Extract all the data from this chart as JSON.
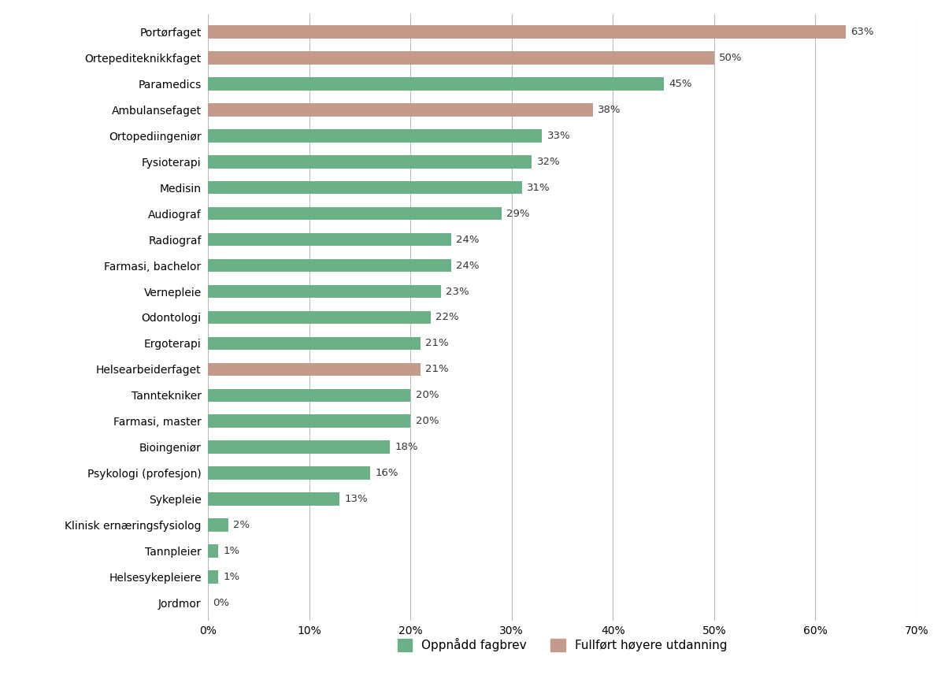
{
  "categories": [
    "Jordmor",
    "Helsesykepleiere",
    "Tannpleier",
    "Klinisk ernæringsfysiolog",
    "Sykepleie",
    "Psykologi (profesjon)",
    "Bioingeniør",
    "Farmasi, master",
    "Tanntekniker",
    "Helsearbeiderfaget",
    "Ergoterapi",
    "Odontologi",
    "Vernepleie",
    "Farmasi, bachelor",
    "Radiograf",
    "Audiograf",
    "Medisin",
    "Fysioterapi",
    "Ortopediingeniør",
    "Ambulansefaget",
    "Paramedics",
    "Ortepediteknikkfaget",
    "Portørfaget"
  ],
  "values": [
    0,
    1,
    1,
    2,
    13,
    16,
    18,
    20,
    20,
    21,
    21,
    22,
    23,
    24,
    24,
    29,
    31,
    32,
    33,
    38,
    45,
    50,
    63
  ],
  "colors": [
    "#6ab187",
    "#6ab187",
    "#6ab187",
    "#6ab187",
    "#6ab187",
    "#6ab187",
    "#6ab187",
    "#6ab187",
    "#6ab187",
    "#c49a8a",
    "#6ab187",
    "#6ab187",
    "#6ab187",
    "#6ab187",
    "#6ab187",
    "#6ab187",
    "#6ab187",
    "#6ab187",
    "#6ab187",
    "#c49a8a",
    "#6ab187",
    "#c49a8a",
    "#c49a8a"
  ],
  "green_color": "#6ab187",
  "brown_color": "#c49a8a",
  "background_color": "#ffffff",
  "grid_color": "#bbbbbb",
  "text_color": "#333333",
  "legend_green": "Oppnådd fagbrev",
  "legend_brown": "Fullført høyere utdanning",
  "xlim": [
    0,
    70
  ],
  "xticks": [
    0,
    10,
    20,
    30,
    40,
    50,
    60,
    70
  ],
  "xtick_labels": [
    "0%",
    "10%",
    "20%",
    "30%",
    "40%",
    "50%",
    "60%",
    "70%"
  ],
  "figsize": [
    12.0,
    8.76
  ],
  "dpi": 100,
  "bar_height": 0.5,
  "label_fontsize": 9.5,
  "tick_fontsize": 10
}
